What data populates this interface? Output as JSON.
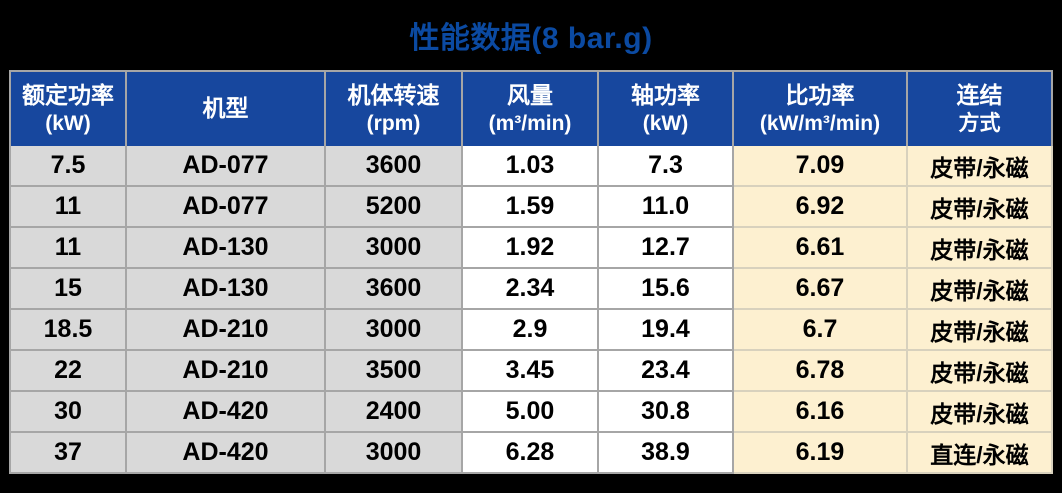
{
  "title": "性能数据(8 bar.g)",
  "colors": {
    "page_bg": "#000000",
    "title_color": "#0b4aa2",
    "header_bg": "#17479e",
    "header_text": "#ffffff",
    "row_gray": "#d9d9d9",
    "row_white": "#ffffff",
    "row_cream": "#fdf0d0",
    "border_gray": "#a6a6a6",
    "border_cream": "#d8d1bd"
  },
  "table": {
    "columns": [
      {
        "id": "rated_power",
        "line1": "额定功率",
        "line2": "(kW)"
      },
      {
        "id": "model",
        "line1": "机型",
        "line2": ""
      },
      {
        "id": "speed",
        "line1": "机体转速",
        "line2": "(rpm)"
      },
      {
        "id": "airflow",
        "line1": "风量",
        "line2": "(m³/min)"
      },
      {
        "id": "shaft_power",
        "line1": "轴功率",
        "line2": "(kW)"
      },
      {
        "id": "specific_power",
        "line1": "比功率",
        "line2": "(kW/m³/min)"
      },
      {
        "id": "connection",
        "line1": "连结",
        "line2": "方式"
      }
    ],
    "rows": [
      [
        "7.5",
        "AD-077",
        "3600",
        "1.03",
        "7.3",
        "7.09",
        "皮带/永磁"
      ],
      [
        "11",
        "AD-077",
        "5200",
        "1.59",
        "11.0",
        "6.92",
        "皮带/永磁"
      ],
      [
        "11",
        "AD-130",
        "3000",
        "1.92",
        "12.7",
        "6.61",
        "皮带/永磁"
      ],
      [
        "15",
        "AD-130",
        "3600",
        "2.34",
        "15.6",
        "6.67",
        "皮带/永磁"
      ],
      [
        "18.5",
        "AD-210",
        "3000",
        "2.9",
        "19.4",
        "6.7",
        "皮带/永磁"
      ],
      [
        "22",
        "AD-210",
        "3500",
        "3.45",
        "23.4",
        "6.78",
        "皮带/永磁"
      ],
      [
        "30",
        "AD-420",
        "2400",
        "5.00",
        "30.8",
        "6.16",
        "皮带/永磁"
      ],
      [
        "37",
        "AD-420",
        "3000",
        "6.28",
        "38.9",
        "6.19",
        "直连/永磁"
      ]
    ]
  }
}
